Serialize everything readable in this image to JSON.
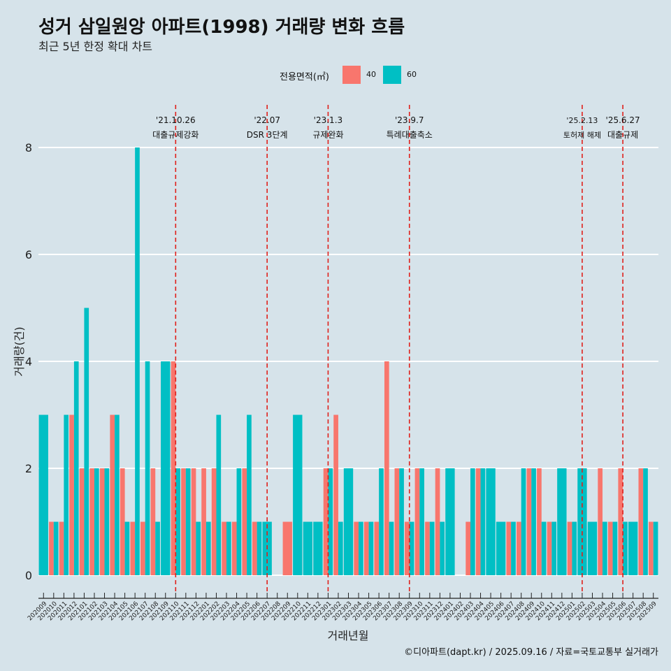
{
  "title": "성거 삼일원앙 아파트(1998) 거래량 변화 흐름",
  "subtitle": "최근 5년 한정 확대 차트",
  "caption": "©디아파트(dapt.kr) / 2025.09.16 / 자료=국토교통부 실거래가",
  "legend": {
    "title": "전용면적(㎡)",
    "items": [
      {
        "label": "40",
        "color": "#f8766d"
      },
      {
        "label": "60",
        "color": "#00bfc4"
      }
    ]
  },
  "chart_data": {
    "type": "bar",
    "xlabel": "거래년월",
    "ylabel": "거래량(건)",
    "ylim": [
      0,
      8.4
    ],
    "yticks": [
      0,
      2,
      4,
      6,
      8
    ],
    "categories": [
      "202009",
      "202010",
      "202011",
      "202012",
      "202101",
      "202102",
      "202103",
      "202104",
      "202105",
      "202106",
      "202107",
      "202108",
      "202109",
      "202110",
      "202111",
      "202112",
      "202201",
      "202202",
      "202203",
      "202204",
      "202205",
      "202206",
      "202207",
      "202208",
      "202209",
      "202210",
      "202211",
      "202212",
      "202301",
      "202302",
      "202303",
      "202304",
      "202305",
      "202306",
      "202307",
      "202308",
      "202309",
      "202310",
      "202311",
      "202312",
      "202401",
      "202402",
      "202403",
      "202404",
      "202405",
      "202406",
      "202407",
      "202408",
      "202409",
      "202410",
      "202411",
      "202412",
      "202501",
      "202502",
      "202503",
      "202504",
      "202505",
      "202506",
      "202507",
      "202508",
      "202509"
    ],
    "series": [
      {
        "name": "40",
        "color": "#f8766d",
        "values": [
          0,
          1,
          1,
          3,
          2,
          2,
          2,
          3,
          2,
          1,
          1,
          2,
          0,
          4,
          2,
          2,
          2,
          2,
          1,
          1,
          2,
          1,
          0,
          0,
          1,
          0,
          0,
          0,
          2,
          3,
          0,
          1,
          1,
          1,
          4,
          2,
          1,
          2,
          1,
          2,
          0,
          0,
          1,
          2,
          0,
          0,
          1,
          1,
          2,
          2,
          1,
          0,
          1,
          0,
          0,
          2,
          1,
          2,
          0,
          2,
          1
        ]
      },
      {
        "name": "60",
        "color": "#00bfc4",
        "values": [
          3,
          1,
          3,
          4,
          5,
          2,
          2,
          3,
          1,
          8,
          4,
          1,
          4,
          2,
          2,
          1,
          1,
          3,
          1,
          2,
          3,
          1,
          1,
          0,
          0,
          3,
          1,
          1,
          2,
          1,
          2,
          1,
          1,
          2,
          1,
          2,
          1,
          2,
          1,
          1,
          2,
          0,
          2,
          2,
          2,
          1,
          1,
          2,
          2,
          1,
          1,
          2,
          1,
          2,
          1,
          1,
          1,
          1,
          1,
          2,
          1
        ]
      }
    ],
    "events": [
      {
        "date": "'21.10.26",
        "label": "대출규제강화",
        "index": 13
      },
      {
        "date": "'22.07",
        "label": "DSR 3단계",
        "index": 22
      },
      {
        "date": "'23.1.3",
        "label": "규제완화",
        "index": 28
      },
      {
        "date": "'23.9.7",
        "label": "특례대출축소",
        "index": 36
      },
      {
        "date": "'25.2.13",
        "label": "토허제 해제",
        "index": 53
      },
      {
        "date": "'25.6.27",
        "label": "대출규제",
        "index": 57
      }
    ]
  }
}
